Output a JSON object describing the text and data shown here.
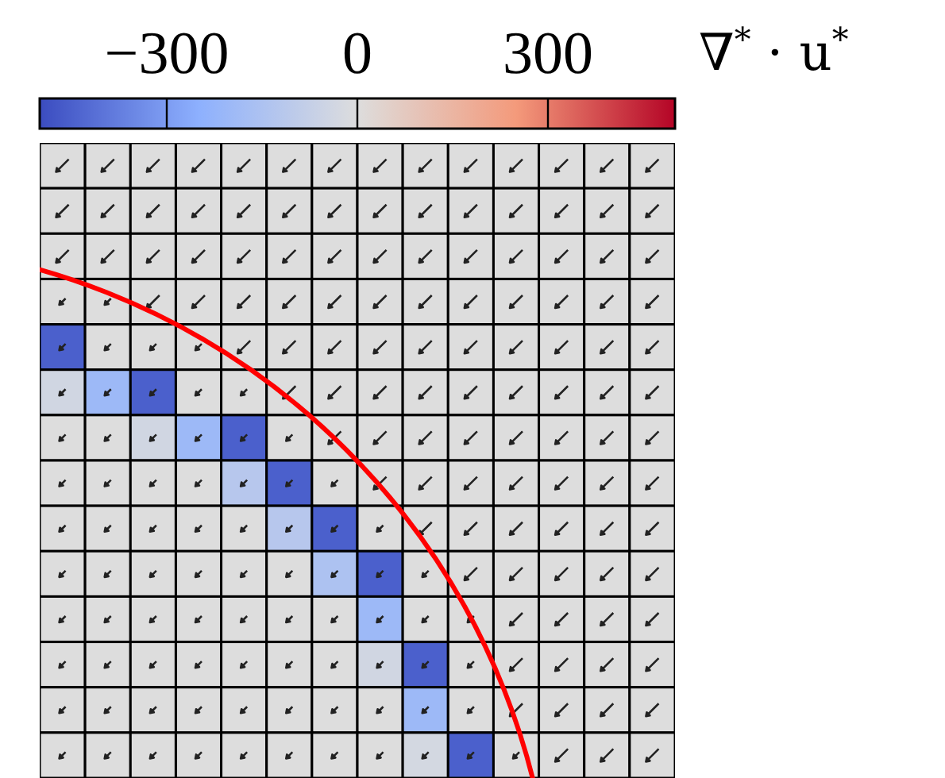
{
  "chart_data": {
    "type": "heatmap",
    "clabel": "∇$^{*}$ · u$^{*}$",
    "categories": [
      null,
      null,
      null,
      null,
      null,
      null,
      null,
      null,
      null,
      null,
      null,
      null,
      null,
      null
    ],
    "y_categories": [
      null,
      null,
      null,
      null,
      null,
      null,
      null,
      null,
      null,
      null,
      null,
      null,
      null,
      null
    ],
    "cells": [
      [
        0,
        0,
        0,
        0,
        0,
        0,
        0,
        0,
        0,
        0,
        0,
        0,
        0,
        0
      ],
      [
        0,
        0,
        0,
        0,
        0,
        0,
        0,
        0,
        0,
        0,
        0,
        0,
        0,
        0
      ],
      [
        0,
        0,
        0,
        0,
        0,
        0,
        0,
        0,
        0,
        0,
        0,
        0,
        0,
        0
      ],
      [
        0,
        0,
        0,
        0,
        0,
        0,
        0,
        0,
        0,
        0,
        0,
        0,
        0,
        0
      ],
      [
        -450,
        0,
        0,
        0,
        0,
        0,
        0,
        0,
        0,
        0,
        0,
        0,
        0,
        0
      ],
      [
        -40,
        -200,
        -450,
        0,
        0,
        0,
        0,
        0,
        0,
        0,
        0,
        0,
        0,
        0
      ],
      [
        0,
        0,
        -40,
        -200,
        -450,
        0,
        0,
        0,
        0,
        0,
        0,
        0,
        0,
        0
      ],
      [
        0,
        0,
        0,
        0,
        -120,
        -450,
        0,
        0,
        0,
        0,
        0,
        0,
        0,
        0
      ],
      [
        0,
        0,
        0,
        0,
        0,
        -120,
        -450,
        0,
        0,
        0,
        0,
        0,
        0,
        0
      ],
      [
        0,
        0,
        0,
        0,
        0,
        0,
        -150,
        -450,
        0,
        0,
        0,
        0,
        0,
        0
      ],
      [
        0,
        0,
        0,
        0,
        0,
        0,
        0,
        -200,
        0,
        0,
        0,
        0,
        0,
        0
      ],
      [
        0,
        0,
        0,
        0,
        0,
        0,
        0,
        -40,
        -450,
        0,
        0,
        0,
        0,
        0
      ],
      [
        0,
        0,
        0,
        0,
        0,
        0,
        0,
        0,
        -200,
        0,
        0,
        0,
        0,
        0
      ],
      [
        0,
        0,
        0,
        0,
        0,
        0,
        0,
        0,
        -30,
        -450,
        0,
        0,
        0,
        0
      ]
    ],
    "clim": [
      -500,
      500
    ],
    "cticks": [
      {
        "value": -300,
        "label": "−300"
      },
      0,
      300
    ]
  }
}
